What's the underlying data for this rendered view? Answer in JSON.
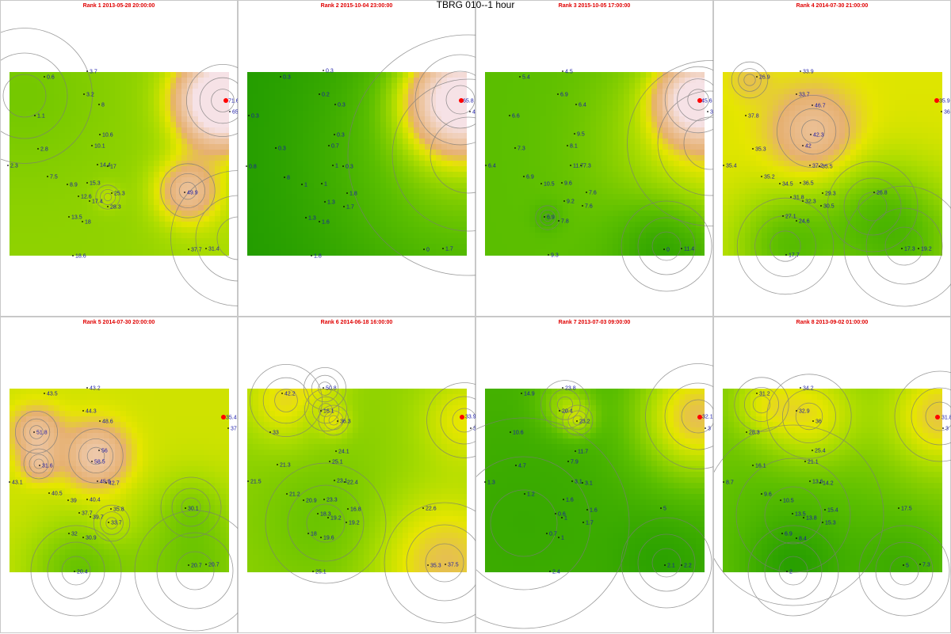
{
  "title": "TBRG 010--1 hour",
  "colors": {
    "low": "#1f9a00",
    "mid": "#e6e600",
    "high": "#e6b070",
    "peak": "#f6e2e6",
    "label": "#1a1aa8",
    "marker": "#ff0000",
    "title": "#e00000"
  },
  "panels": [
    {
      "title": "Rank 1 2013-05-28 20:00:00",
      "base": 22,
      "marker": [
        284,
        126
      ],
      "blobs": [
        [
          280,
          126,
          24,
          75
        ],
        [
          236,
          240,
          18,
          27
        ],
        [
          135,
          248,
          8,
          6
        ],
        [
          30,
          120,
          45,
          -4
        ],
        [
          300,
          300,
          45,
          4
        ]
      ],
      "labels": [
        [
          "0.6",
          58,
          96
        ],
        [
          "3.7",
          112,
          89
        ],
        [
          "3.2",
          108,
          118
        ],
        [
          "8",
          127,
          131
        ],
        [
          "1.1",
          46,
          145
        ],
        [
          "10.6",
          128,
          169
        ],
        [
          "10.1",
          118,
          183
        ],
        [
          "2.8",
          50,
          187
        ],
        [
          "2.3",
          12,
          208
        ],
        [
          "14.4",
          125,
          207
        ],
        [
          "17",
          138,
          209
        ],
        [
          "7.5",
          62,
          222
        ],
        [
          "8.9",
          87,
          232
        ],
        [
          "15.3",
          112,
          230
        ],
        [
          "12.6",
          101,
          247
        ],
        [
          "25.3",
          143,
          243
        ],
        [
          "17.4",
          115,
          253
        ],
        [
          "28.3",
          138,
          260
        ],
        [
          "49.9",
          235,
          242
        ],
        [
          "13.5",
          89,
          273
        ],
        [
          "18",
          106,
          279
        ],
        [
          "71.6",
          287,
          126
        ],
        [
          "65",
          292,
          140
        ],
        [
          "37.7",
          240,
          314
        ],
        [
          "31.4",
          262,
          313
        ],
        [
          "18.6",
          94,
          322
        ]
      ]
    },
    {
      "title": "Rank 2 2015-10-04 23:00:00",
      "base": 0,
      "marker": [
        581,
        126
      ],
      "blobs": [
        [
          580,
          125,
          30,
          65
        ],
        [
          590,
          195,
          80,
          20
        ]
      ],
      "labels": [
        [
          "0.3",
          356,
          96
        ],
        [
          "0.3",
          410,
          88
        ],
        [
          "0.2",
          405,
          118
        ],
        [
          "0.3",
          425,
          131
        ],
        [
          "0.3",
          316,
          145
        ],
        [
          "0.3",
          424,
          169
        ],
        [
          "0.7",
          417,
          183
        ],
        [
          "0.3",
          350,
          186
        ],
        [
          "0.8",
          313,
          209
        ],
        [
          "1",
          422,
          208
        ],
        [
          "0.3",
          435,
          209
        ],
        [
          "8",
          361,
          223
        ],
        [
          "1",
          383,
          232
        ],
        [
          "1",
          408,
          231
        ],
        [
          "1.8",
          440,
          243
        ],
        [
          "1.3",
          412,
          254
        ],
        [
          "1.7",
          436,
          260
        ],
        [
          "1.3",
          388,
          274
        ],
        [
          "1.6",
          405,
          279
        ],
        [
          "0",
          537,
          314
        ],
        [
          "1.7",
          561,
          313
        ],
        [
          "1.8",
          395,
          322
        ],
        [
          "65.8",
          583,
          126
        ],
        [
          "4",
          595,
          140
        ]
      ]
    },
    {
      "title": "Rank 3 2015-10-05 17:00:00",
      "base": 14,
      "marker": [
        882,
        126
      ],
      "blobs": [
        [
          880,
          125,
          22,
          55
        ],
        [
          895,
          180,
          55,
          20
        ],
        [
          840,
          310,
          30,
          -14
        ],
        [
          690,
          274,
          8,
          -6
        ]
      ],
      "labels": [
        [
          "5.4",
          658,
          96
        ],
        [
          "4.5",
          712,
          89
        ],
        [
          "6.9",
          706,
          118
        ],
        [
          "6.4",
          729,
          131
        ],
        [
          "6.6",
          645,
          145
        ],
        [
          "9.5",
          727,
          168
        ],
        [
          "8.1",
          718,
          183
        ],
        [
          "7.3",
          652,
          186
        ],
        [
          "6.4",
          615,
          208
        ],
        [
          "11.7",
          722,
          208
        ],
        [
          "7.3",
          735,
          208
        ],
        [
          "6.9",
          663,
          222
        ],
        [
          "10.5",
          685,
          231
        ],
        [
          "9.6",
          711,
          230
        ],
        [
          "7.6",
          742,
          242
        ],
        [
          "9.2",
          714,
          253
        ],
        [
          "7.6",
          737,
          259
        ],
        [
          "6.9",
          689,
          273
        ],
        [
          "7.8",
          707,
          278
        ],
        [
          "0",
          840,
          314
        ],
        [
          "11.4",
          862,
          313
        ],
        [
          "9.3",
          694,
          321
        ],
        [
          "45.6",
          884,
          126
        ],
        [
          "3",
          895,
          140
        ]
      ]
    },
    {
      "title": "Rank 4 2014-07-30 21:00:00",
      "base": 33,
      "marker": [
        1181,
        126
      ],
      "blobs": [
        [
          1025,
          165,
          24,
          18
        ],
        [
          990,
          310,
          32,
          -18
        ],
        [
          1140,
          310,
          40,
          -18
        ],
        [
          945,
          100,
          12,
          6
        ],
        [
          1100,
          260,
          30,
          -8
        ]
      ],
      "labels": [
        [
          "26.9",
          957,
          96
        ],
        [
          "33.9",
          1012,
          89
        ],
        [
          "33.7",
          1007,
          118
        ],
        [
          "46.7",
          1027,
          132
        ],
        [
          "37.8",
          943,
          145
        ],
        [
          "42.3",
          1025,
          169
        ],
        [
          "42",
          1015,
          183
        ],
        [
          "35.3",
          952,
          187
        ],
        [
          "35.4",
          915,
          208
        ],
        [
          "37.2",
          1024,
          208
        ],
        [
          "35.5",
          1036,
          209
        ],
        [
          "35.2",
          963,
          222
        ],
        [
          "34.5",
          986,
          231
        ],
        [
          "36.5",
          1012,
          230
        ],
        [
          "29.3",
          1040,
          243
        ],
        [
          "31.8",
          1000,
          248
        ],
        [
          "32.3",
          1015,
          253
        ],
        [
          "26.8",
          1105,
          242
        ],
        [
          "30.5",
          1038,
          259
        ],
        [
          "27.1",
          990,
          272
        ],
        [
          "24.6",
          1007,
          278
        ],
        [
          "35.9",
          1184,
          126
        ],
        [
          "36",
          1190,
          140
        ],
        [
          "17.3",
          1140,
          313
        ],
        [
          "19.2",
          1161,
          313
        ],
        [
          "17.7",
          994,
          321
        ]
      ]
    },
    {
      "title": "Rank 5 2014-07-30 20:00:00",
      "base": 31,
      "marker": [
        281,
        526
      ],
      "blobs": [
        [
          45,
          545,
          14,
          20
        ],
        [
          48,
          585,
          10,
          16
        ],
        [
          120,
          575,
          18,
          25
        ],
        [
          95,
          720,
          30,
          -14
        ],
        [
          245,
          720,
          40,
          -14
        ],
        [
          240,
          640,
          20,
          -6
        ],
        [
          140,
          660,
          12,
          4
        ]
      ],
      "labels": [
        [
          "43.5",
          58,
          496
        ],
        [
          "43.2",
          112,
          489
        ],
        [
          "44.3",
          107,
          518
        ],
        [
          "48.6",
          128,
          531
        ],
        [
          "51.8",
          45,
          545
        ],
        [
          "56",
          127,
          568
        ],
        [
          "58.5",
          118,
          582
        ],
        [
          "31.6",
          52,
          587
        ],
        [
          "43.1",
          14,
          608
        ],
        [
          "45.8",
          125,
          607
        ],
        [
          "42.7",
          136,
          609
        ],
        [
          "40.5",
          64,
          622
        ],
        [
          "39",
          88,
          631
        ],
        [
          "40.4",
          112,
          630
        ],
        [
          "35.8",
          142,
          642
        ],
        [
          "30.1",
          236,
          641
        ],
        [
          "37.7",
          102,
          647
        ],
        [
          "39.7",
          116,
          652
        ],
        [
          "33.7",
          139,
          659
        ],
        [
          "32",
          89,
          673
        ],
        [
          "30.9",
          107,
          678
        ],
        [
          "35.4",
          284,
          526
        ],
        [
          "37",
          290,
          540
        ],
        [
          "20.7",
          240,
          713
        ],
        [
          "20.7",
          262,
          712
        ],
        [
          "20.4",
          96,
          721
        ]
      ]
    },
    {
      "title": "Rank 6 2014-06-18 16:00:00",
      "base": 22,
      "marker": [
        582,
        526
      ],
      "blobs": [
        [
          360,
          505,
          24,
          14
        ],
        [
          409,
          490,
          14,
          8
        ],
        [
          420,
          530,
          10,
          14
        ],
        [
          410,
          517,
          14,
          -8
        ],
        [
          585,
          530,
          25,
          12
        ],
        [
          560,
          710,
          40,
          18
        ],
        [
          410,
          660,
          40,
          -6
        ]
      ],
      "labels": [
        [
          "42.2",
          358,
          496
        ],
        [
          "50.8",
          410,
          489
        ],
        [
          "16.1",
          407,
          518
        ],
        [
          "36.3",
          428,
          531
        ],
        [
          "33",
          343,
          545
        ],
        [
          "33.9",
          586,
          525
        ],
        [
          "3",
          596,
          540
        ],
        [
          "24.1",
          426,
          569
        ],
        [
          "25.1",
          418,
          582
        ],
        [
          "21.3",
          352,
          586
        ],
        [
          "21.5",
          315,
          607
        ],
        [
          "23.1",
          424,
          606
        ],
        [
          "22.4",
          437,
          608
        ],
        [
          "21.2",
          364,
          623
        ],
        [
          "20.9",
          385,
          631
        ],
        [
          "23.3",
          411,
          630
        ],
        [
          "16.8",
          441,
          642
        ],
        [
          "22.6",
          536,
          641
        ],
        [
          "18.3",
          403,
          648
        ],
        [
          "19.2",
          416,
          653
        ],
        [
          "19.2",
          439,
          659
        ],
        [
          "18",
          391,
          673
        ],
        [
          "19.6",
          407,
          678
        ],
        [
          "35.3",
          542,
          713
        ],
        [
          "37.5",
          564,
          712
        ],
        [
          "25.1",
          397,
          721
        ]
      ]
    },
    {
      "title": "Rank 7 2013-07-03 09:00:00",
      "base": 10,
      "marker": [
        882,
        526
      ],
      "blobs": [
        [
          880,
          525,
          35,
          30
        ],
        [
          712,
          510,
          16,
          14
        ],
        [
          728,
          530,
          10,
          12
        ],
        [
          660,
          660,
          70,
          -4
        ],
        [
          840,
          710,
          30,
          -6
        ]
      ],
      "labels": [
        [
          "14.9",
          660,
          496
        ],
        [
          "23.8",
          712,
          489
        ],
        [
          "20.4",
          708,
          518
        ],
        [
          "23.2",
          730,
          531
        ],
        [
          "10.6",
          646,
          545
        ],
        [
          "11.7",
          728,
          569
        ],
        [
          "7.9",
          719,
          582
        ],
        [
          "4.7",
          653,
          587
        ],
        [
          "1.3",
          614,
          608
        ],
        [
          "3.1",
          724,
          607
        ],
        [
          "3.1",
          737,
          609
        ],
        [
          "1.2",
          664,
          623
        ],
        [
          "1.6",
          713,
          630
        ],
        [
          "1.6",
          743,
          643
        ],
        [
          "0.6",
          703,
          648
        ],
        [
          "1",
          711,
          653
        ],
        [
          "1.7",
          738,
          659
        ],
        [
          "0.7",
          692,
          673
        ],
        [
          "1",
          707,
          678
        ],
        [
          "5",
          836,
          641
        ],
        [
          "32.1",
          885,
          525
        ],
        [
          "3",
          892,
          540
        ],
        [
          "2.1",
          841,
          713
        ],
        [
          "2.2",
          862,
          713
        ],
        [
          "2.4",
          696,
          721
        ]
      ]
    },
    {
      "title": "Rank 8 2013-09-02 01:00:00",
      "base": 19,
      "marker": [
        1182,
        526
      ],
      "blobs": [
        [
          1020,
          525,
          28,
          18
        ],
        [
          960,
          510,
          18,
          10
        ],
        [
          1185,
          525,
          30,
          20
        ],
        [
          1000,
          650,
          60,
          -6
        ],
        [
          1000,
          720,
          30,
          -12
        ],
        [
          1140,
          720,
          30,
          -10
        ]
      ],
      "labels": [
        [
          "31.2",
          957,
          496
        ],
        [
          "34.2",
          1012,
          489
        ],
        [
          "32.9",
          1007,
          518
        ],
        [
          "36",
          1028,
          531
        ],
        [
          "28.3",
          944,
          545
        ],
        [
          "25.4",
          1027,
          568
        ],
        [
          "21.1",
          1018,
          582
        ],
        [
          "16.1",
          952,
          587
        ],
        [
          "8.7",
          915,
          608
        ],
        [
          "13.6",
          1024,
          607
        ],
        [
          "14.2",
          1037,
          609
        ],
        [
          "9.6",
          963,
          623
        ],
        [
          "10.5",
          987,
          631
        ],
        [
          "15.4",
          1043,
          643
        ],
        [
          "17.5",
          1136,
          641
        ],
        [
          "13.5",
          1002,
          648
        ],
        [
          "13.8",
          1016,
          653
        ],
        [
          "15.3",
          1040,
          659
        ],
        [
          "6.9",
          989,
          673
        ],
        [
          "8.4",
          1007,
          679
        ],
        [
          "31.8",
          1187,
          526
        ],
        [
          "3",
          1192,
          540
        ],
        [
          "5",
          1142,
          713
        ],
        [
          "7.3",
          1163,
          712
        ],
        [
          "2",
          995,
          721
        ]
      ]
    }
  ]
}
